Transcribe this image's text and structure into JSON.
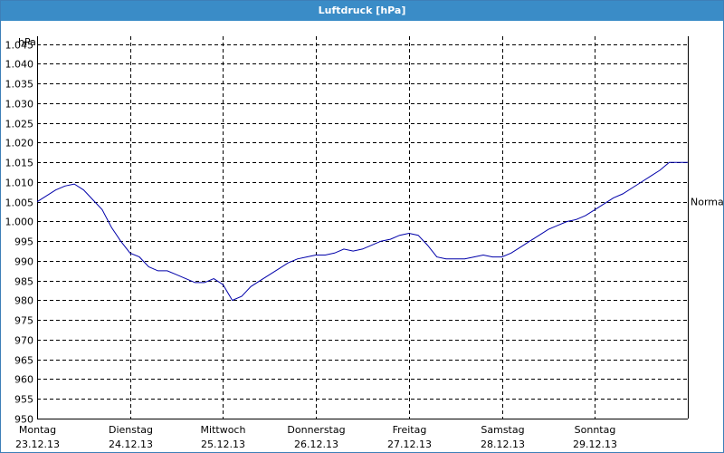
{
  "window": {
    "title": "Luftdruck [hPa]"
  },
  "colors": {
    "titlebar": "#3a8cc7",
    "line": "#0000aa",
    "grid": "#000000"
  },
  "chart_data": {
    "type": "line",
    "title": "Luftdruck [hPa]",
    "ylabel": "hPa",
    "xlabel": "",
    "ylim": [
      950,
      1047
    ],
    "yticks": [
      950,
      955,
      960,
      965,
      970,
      975,
      980,
      985,
      990,
      995,
      1000,
      1005,
      1010,
      1015,
      1020,
      1025,
      1030,
      1035,
      1040,
      1045
    ],
    "ytick_labels": [
      "950",
      "955",
      "960",
      "965",
      "970",
      "975",
      "980",
      "985",
      "990",
      "995",
      "1.000",
      "1.005",
      "1.010",
      "1.015",
      "1.020",
      "1.025",
      "1.030",
      "1.035",
      "1.040",
      "1.045"
    ],
    "xlim": [
      0,
      7
    ],
    "x_categories": [
      {
        "day": "Montag",
        "date": "23.12.13"
      },
      {
        "day": "Dienstag",
        "date": "24.12.13"
      },
      {
        "day": "Mittwoch",
        "date": "25.12.13"
      },
      {
        "day": "Donnerstag",
        "date": "26.12.13"
      },
      {
        "day": "Freitag",
        "date": "27.12.13"
      },
      {
        "day": "Samstag",
        "date": "28.12.13"
      },
      {
        "day": "Sonntag",
        "date": "29.12.13"
      }
    ],
    "grid": true,
    "annotations": [
      {
        "text": "Normal",
        "y": 1005
      }
    ],
    "series": [
      {
        "x": [
          0,
          0.1,
          0.2,
          0.3,
          0.4,
          0.5,
          0.6,
          0.7,
          0.8,
          0.9,
          1.0,
          1.1,
          1.2,
          1.3,
          1.4,
          1.5,
          1.6,
          1.7,
          1.8,
          1.9,
          2.0,
          2.1,
          2.2,
          2.3,
          2.4,
          2.5,
          2.6,
          2.7,
          2.8,
          2.9,
          3.0,
          3.1,
          3.2,
          3.3,
          3.4,
          3.5,
          3.6,
          3.7,
          3.8,
          3.9,
          4.0,
          4.1,
          4.2,
          4.3,
          4.4,
          4.5,
          4.6,
          4.7,
          4.8,
          4.9,
          5.0,
          5.1,
          5.2,
          5.3,
          5.4,
          5.5,
          5.6,
          5.7,
          5.8,
          5.9,
          6.0,
          6.1,
          6.2,
          6.3,
          6.4,
          6.5,
          6.6,
          6.7,
          6.8,
          6.9,
          7.0
        ],
        "y": [
          1005,
          1006.5,
          1008,
          1009,
          1009.5,
          1008,
          1005.5,
          1003,
          998.5,
          995,
          992,
          991,
          988.5,
          987.5,
          987.5,
          986.5,
          985.5,
          984.5,
          984.5,
          985.5,
          984,
          980,
          981,
          983.5,
          985,
          986.5,
          988,
          989.5,
          990.5,
          991,
          991.5,
          991.5,
          992,
          993,
          992.5,
          993,
          994,
          995,
          995.5,
          996.5,
          997,
          996.5,
          994,
          991,
          990.5,
          990.5,
          990.5,
          991,
          991.5,
          991,
          991,
          992,
          993.5,
          995,
          996.5,
          998,
          999,
          1000,
          1000.5,
          1001.5,
          1003,
          1004.5,
          1006,
          1007,
          1008.5,
          1010,
          1011.5,
          1013,
          1015,
          1015,
          1015
        ]
      }
    ]
  }
}
